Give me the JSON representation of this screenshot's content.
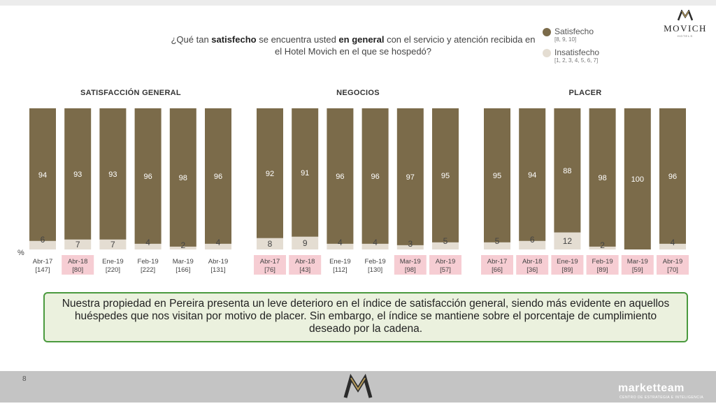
{
  "brand": {
    "name": "MOVICH",
    "sub": "HOTELS"
  },
  "question": {
    "part1": "¿Qué tan ",
    "bold1": "satisfecho",
    "part2": " se encuentra usted ",
    "bold2": "en general",
    "part3": " con el servicio y atención recibida en el Hotel Movich en el que se hospedó?"
  },
  "legend": [
    {
      "label": "Satisfecho",
      "sub": "[8, 9, 10]",
      "color": "#7b6b4a"
    },
    {
      "label": "Insatisfecho",
      "sub": "[1, 2, 3, 4, 5, 6, 7]",
      "color": "#e4ddd2"
    }
  ],
  "percent_label": "%",
  "colors": {
    "satisfied": "#7b6b4a",
    "unsatisfied": "#e4ddd2",
    "highlight": "#f6cdd3"
  },
  "chart_data": [
    {
      "type": "bar",
      "title": "SATISFACCIÓN GENERAL",
      "categories": [
        "Abr-17",
        "Abr-18",
        "Ene-19",
        "Feb-19",
        "Mar-19",
        "Abr-19"
      ],
      "bases": [
        "[147]",
        "[80]",
        "[220]",
        "[222]",
        "[166]",
        "[131]"
      ],
      "highlight": [
        false,
        true,
        false,
        false,
        false,
        false
      ],
      "series": [
        {
          "name": "Satisfecho",
          "values": [
            94,
            93,
            93,
            96,
            98,
            96
          ]
        },
        {
          "name": "Insatisfecho",
          "values": [
            6,
            7,
            7,
            4,
            2,
            4
          ]
        }
      ],
      "ylim": [
        0,
        100
      ]
    },
    {
      "type": "bar",
      "title": "NEGOCIOS",
      "categories": [
        "Abr-17",
        "Abr-18",
        "Ene-19",
        "Feb-19",
        "Mar-19",
        "Abr-19"
      ],
      "bases": [
        "[76]",
        "[43]",
        "[112]",
        "[130]",
        "[98]",
        "[57]"
      ],
      "highlight": [
        true,
        true,
        false,
        false,
        true,
        true
      ],
      "series": [
        {
          "name": "Satisfecho",
          "values": [
            92,
            91,
            96,
            96,
            97,
            95
          ]
        },
        {
          "name": "Insatisfecho",
          "values": [
            8,
            9,
            4,
            4,
            3,
            5
          ]
        }
      ],
      "ylim": [
        0,
        100
      ]
    },
    {
      "type": "bar",
      "title": "PLACER",
      "categories": [
        "Abr-17",
        "Abr-18",
        "Ene-19",
        "Feb-19",
        "Mar-19",
        "Abr-19"
      ],
      "bases": [
        "[66]",
        "[36]",
        "[89]",
        "[89]",
        "[59]",
        "[70]"
      ],
      "highlight": [
        true,
        true,
        true,
        true,
        true,
        true
      ],
      "series": [
        {
          "name": "Satisfecho",
          "values": [
            95,
            94,
            88,
            98,
            100,
            96
          ]
        },
        {
          "name": "Insatisfecho",
          "values": [
            5,
            6,
            12,
            2,
            null,
            4
          ]
        }
      ],
      "ylim": [
        0,
        100
      ]
    }
  ],
  "note": "Nuestra propiedad en Pereira presenta un leve deterioro en el índice de satisfacción general, siendo más evidente en aquellos huéspedes que nos visitan por motivo de placer. Sin embargo, el índice se mantiene sobre el porcentaje de cumplimiento deseado por la cadena.",
  "footer": {
    "page": "8",
    "right_brand": "marketteam",
    "right_sub": "CENTRO DE ESTRATEGIA E INTELIGENCIA"
  }
}
